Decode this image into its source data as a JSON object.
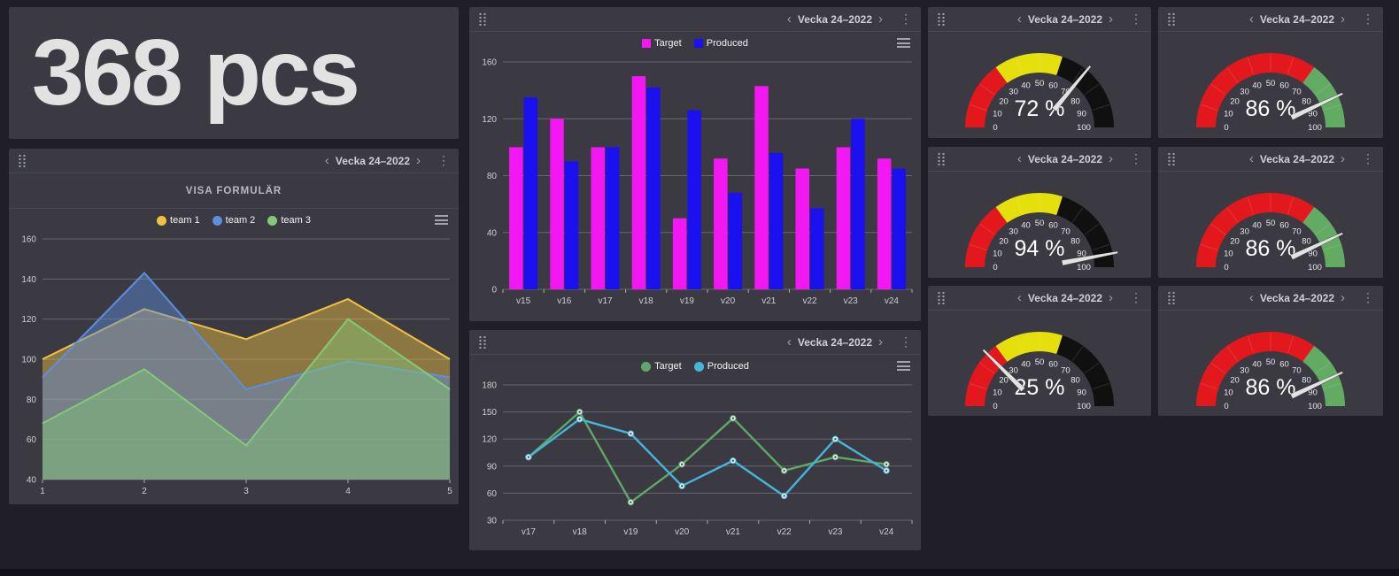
{
  "theme": {
    "page_bg": "#201f28",
    "panel_bg": "#3b3a43",
    "gauge_red": "#e2181d",
    "gauge_yellow": "#e5df0e",
    "gauge_black": "#101010",
    "gauge_green": "#62ab63",
    "bar_target": "#f318f3",
    "bar_produced": "#1a10f0"
  },
  "period_nav": {
    "prev": "‹",
    "label": "Vecka 24–2022",
    "next": "›",
    "menu": "⋮"
  },
  "counter_panel": {
    "value": "368 pcs"
  },
  "team_panel": {
    "button_label": "VISA FORMULÄR",
    "chart_data": {
      "type": "area",
      "title": "",
      "legend_marker": "circle",
      "legend_position": "top",
      "grid": true,
      "x": [
        1,
        2,
        3,
        4,
        5
      ],
      "series": [
        {
          "name": "team 1",
          "color": "#efc242",
          "values": [
            100,
            125,
            110,
            130,
            100
          ]
        },
        {
          "name": "team 2",
          "color": "#5d8fdd",
          "values": [
            91,
            143,
            85,
            99,
            91
          ]
        },
        {
          "name": "team 3",
          "color": "#83c97a",
          "values": [
            68,
            95,
            57,
            120,
            85
          ]
        }
      ],
      "ylim": [
        40,
        160
      ],
      "yticks": [
        40,
        60,
        80,
        100,
        120,
        140,
        160
      ]
    }
  },
  "bar_panel": {
    "chart_data": {
      "type": "bar",
      "title": "",
      "legend_marker": "square",
      "legend_position": "top",
      "grid": true,
      "categories": [
        "v15",
        "v16",
        "v17",
        "v18",
        "v19",
        "v20",
        "v21",
        "v22",
        "v23",
        "v24"
      ],
      "series": [
        {
          "name": "Target",
          "color": "#f318f3",
          "values": [
            100,
            120,
            100,
            150,
            50,
            92,
            143,
            85,
            100,
            92
          ]
        },
        {
          "name": "Produced",
          "color": "#1a10f0",
          "values": [
            135,
            90,
            100,
            142,
            126,
            68,
            96,
            57,
            120,
            85
          ]
        }
      ],
      "ylim": [
        0,
        160
      ],
      "yticks": [
        0,
        40,
        80,
        120,
        160
      ]
    }
  },
  "line_panel": {
    "chart_data": {
      "type": "line",
      "title": "",
      "legend_marker": "circle",
      "legend_position": "top",
      "grid": true,
      "categories": [
        "v17",
        "v18",
        "v19",
        "v20",
        "v21",
        "v22",
        "v23",
        "v24"
      ],
      "series": [
        {
          "name": "Target",
          "color": "#5fa868",
          "values": [
            100,
            150,
            50,
            92,
            143,
            85,
            100,
            92
          ]
        },
        {
          "name": "Produced",
          "color": "#45b6d9",
          "values": [
            100,
            142,
            126,
            68,
            96,
            57,
            120,
            85
          ]
        }
      ],
      "ylim": [
        30,
        180
      ],
      "yticks": [
        30,
        60,
        90,
        120,
        150,
        180
      ]
    }
  },
  "gauge_ticks": [
    0,
    10,
    20,
    30,
    40,
    50,
    60,
    70,
    80,
    90,
    100
  ],
  "gauges": [
    {
      "label": "72 %",
      "value": 72,
      "segments": [
        {
          "from": 0,
          "to": 30,
          "color": "#e2181d"
        },
        {
          "from": 30,
          "to": 60,
          "color": "#e5df0e"
        },
        {
          "from": 60,
          "to": 100,
          "color": "#101010"
        }
      ]
    },
    {
      "label": "86 %",
      "value": 86,
      "segments": [
        {
          "from": 0,
          "to": 70,
          "color": "#e2181d"
        },
        {
          "from": 70,
          "to": 100,
          "color": "#62ab63"
        }
      ]
    },
    {
      "label": "94 %",
      "value": 94,
      "segments": [
        {
          "from": 0,
          "to": 30,
          "color": "#e2181d"
        },
        {
          "from": 30,
          "to": 60,
          "color": "#e5df0e"
        },
        {
          "from": 60,
          "to": 100,
          "color": "#101010"
        }
      ]
    },
    {
      "label": "86 %",
      "value": 86,
      "segments": [
        {
          "from": 0,
          "to": 70,
          "color": "#e2181d"
        },
        {
          "from": 70,
          "to": 100,
          "color": "#62ab63"
        }
      ]
    },
    {
      "label": "25 %",
      "value": 25,
      "segments": [
        {
          "from": 0,
          "to": 30,
          "color": "#e2181d"
        },
        {
          "from": 30,
          "to": 60,
          "color": "#e5df0e"
        },
        {
          "from": 60,
          "to": 100,
          "color": "#101010"
        }
      ]
    },
    {
      "label": "86 %",
      "value": 86,
      "segments": [
        {
          "from": 0,
          "to": 70,
          "color": "#e2181d"
        },
        {
          "from": 70,
          "to": 100,
          "color": "#62ab63"
        }
      ]
    }
  ]
}
